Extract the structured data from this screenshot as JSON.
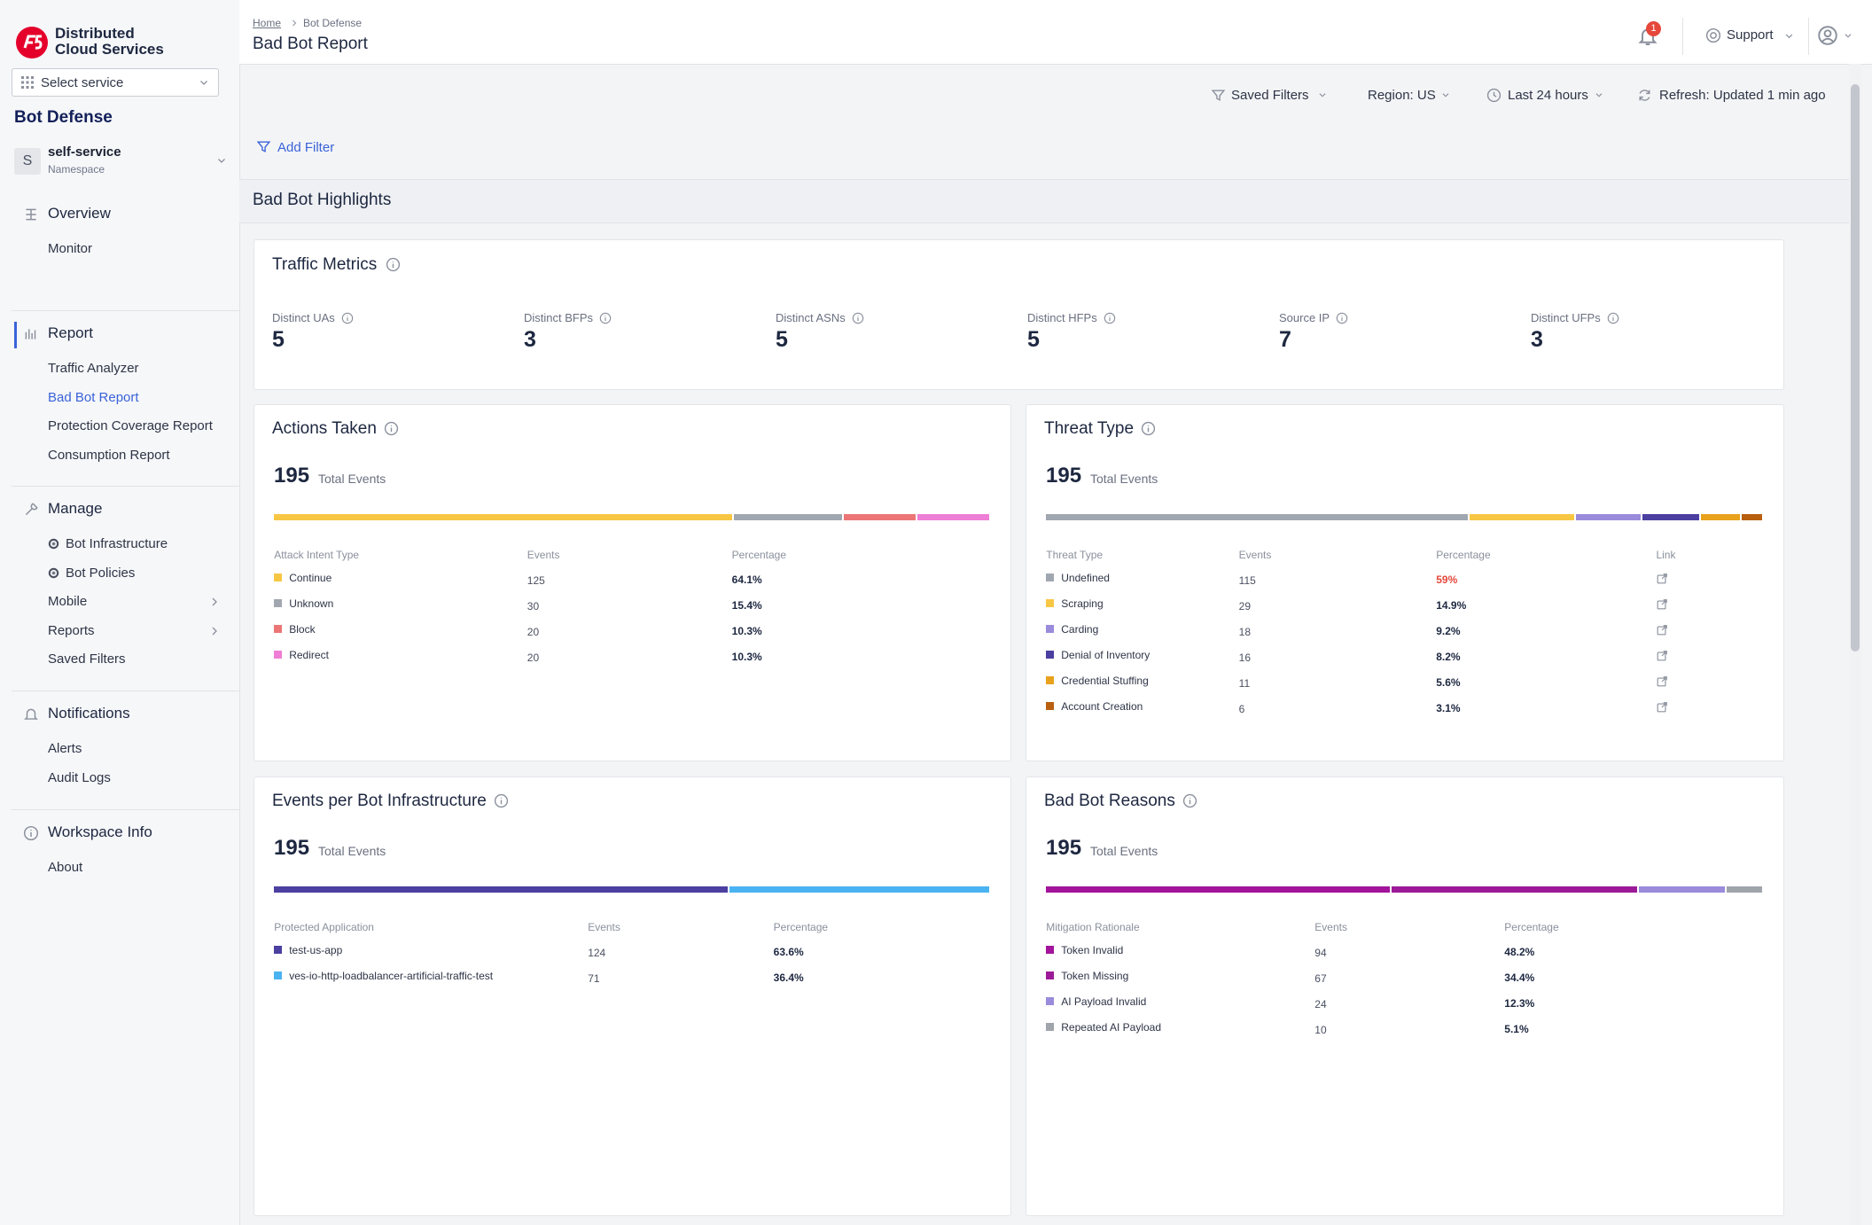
{
  "sidebar": {
    "brand": [
      "Distributed",
      "Cloud Services"
    ],
    "select_service": "Select service",
    "section": "Bot Defense",
    "namespace": {
      "initial": "S",
      "name": "self-service",
      "label": "Namespace"
    },
    "active_group": 1,
    "active_item": 1,
    "groups": [
      {
        "title": "Overview",
        "items": [
          {
            "label": "Monitor"
          }
        ]
      },
      {
        "title": "Report",
        "items": [
          {
            "label": "Traffic Analyzer"
          },
          {
            "label": "Bad Bot Report"
          },
          {
            "label": "Protection Coverage Report"
          },
          {
            "label": "Consumption Report"
          }
        ]
      },
      {
        "title": "Manage",
        "items": [
          {
            "label": "Bot Infrastructure",
            "icon": true
          },
          {
            "label": "Bot Policies",
            "icon": true
          },
          {
            "label": "Mobile",
            "submenu": true
          },
          {
            "label": "Reports",
            "submenu": true
          },
          {
            "label": "Saved Filters"
          }
        ]
      },
      {
        "title": "Notifications",
        "items": [
          {
            "label": "Alerts"
          },
          {
            "label": "Audit Logs"
          }
        ]
      },
      {
        "title": "Workspace Info",
        "items": [
          {
            "label": "About"
          }
        ]
      }
    ]
  },
  "header": {
    "breadcrumb": [
      "Home",
      "Bot Defense"
    ],
    "title": "Bad Bot Report",
    "notification_count": "1",
    "support": "Support"
  },
  "toolbar": {
    "saved_filters": "Saved Filters",
    "region": "Region: US",
    "time_range": "Last 24 hours",
    "refresh": "Refresh: Updated 1 min ago",
    "add_filter": "Add Filter"
  },
  "section_title": "Bad Bot Highlights",
  "traffic_metrics": {
    "title": "Traffic Metrics",
    "metrics": [
      {
        "label": "Distinct UAs",
        "value": 5
      },
      {
        "label": "Distinct BFPs",
        "value": 3
      },
      {
        "label": "Distinct ASNs",
        "value": 5
      },
      {
        "label": "Distinct HFPs",
        "value": 5
      },
      {
        "label": "Source IP",
        "value": 7
      },
      {
        "label": "Distinct UFPs",
        "value": 3
      }
    ]
  },
  "cards": [
    {
      "title": "Actions Taken",
      "total": 195,
      "total_label": "Total Events",
      "columns": [
        "Attack Intent Type",
        "Events",
        "Percentage"
      ],
      "rows": [
        {
          "name": "Continue",
          "color": "#f7c744",
          "events": 125,
          "percentage": "64.1%"
        },
        {
          "name": "Unknown",
          "color": "#a1a7b0",
          "events": 30,
          "percentage": "15.4%"
        },
        {
          "name": "Block",
          "color": "#ec7575",
          "events": 20,
          "percentage": "10.3%"
        },
        {
          "name": "Redirect",
          "color": "#ee7ed6",
          "events": 20,
          "percentage": "10.3%"
        }
      ]
    },
    {
      "title": "Threat Type",
      "total": 195,
      "total_label": "Total Events",
      "columns": [
        "Threat Type",
        "Events",
        "Percentage",
        "Link"
      ],
      "rows": [
        {
          "name": "Undefined",
          "color": "#a1a7b0",
          "events": 115,
          "percentage": "59%",
          "percentage_color": "#e5483b"
        },
        {
          "name": "Scraping",
          "color": "#f7c744",
          "events": 29,
          "percentage": "14.9%"
        },
        {
          "name": "Carding",
          "color": "#9a8bdb",
          "events": 18,
          "percentage": "9.2%"
        },
        {
          "name": "Denial of Inventory",
          "color": "#4b3fa0",
          "events": 16,
          "percentage": "8.2%"
        },
        {
          "name": "Credential Stuffing",
          "color": "#e8a21c",
          "events": 11,
          "percentage": "5.6%"
        },
        {
          "name": "Account Creation",
          "color": "#b8600f",
          "events": 6,
          "percentage": "3.1%"
        }
      ]
    },
    {
      "title": "Events per Bot Infrastructure",
      "total": 195,
      "total_label": "Total Events",
      "columns": [
        "Protected Application",
        "Events",
        "Percentage"
      ],
      "rows": [
        {
          "name": "test-us-app",
          "color": "#4b3fa0",
          "events": 124,
          "percentage": "63.6%"
        },
        {
          "name": "ves-io-http-loadbalancer-artificial-traffic-test",
          "color": "#4ab3f2",
          "events": 71,
          "percentage": "36.4%"
        }
      ]
    },
    {
      "title": "Bad Bot Reasons",
      "total": 195,
      "total_label": "Total Events",
      "columns": [
        "Mitigation Rationale",
        "Events",
        "Percentage"
      ],
      "rows": [
        {
          "name": "Token Invalid",
          "color": "#a3139b",
          "events": 94,
          "percentage": "48.2%"
        },
        {
          "name": "Token Missing",
          "color": "#9c1a98",
          "events": 67,
          "percentage": "34.4%"
        },
        {
          "name": "AI Payload Invalid",
          "color": "#9a8bdb",
          "events": 24,
          "percentage": "12.3%"
        },
        {
          "name": "Repeated AI Payload",
          "color": "#a0a4ab",
          "events": 10,
          "percentage": "5.1%"
        }
      ]
    }
  ]
}
